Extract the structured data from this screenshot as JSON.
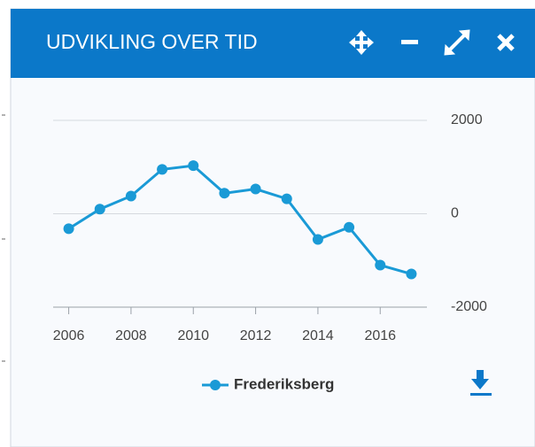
{
  "header": {
    "title": "UDVIKLING OVER TID"
  },
  "chart_data": {
    "type": "line",
    "x": [
      2006,
      2007,
      2008,
      2009,
      2010,
      2011,
      2012,
      2013,
      2014,
      2015,
      2016,
      2017
    ],
    "series": [
      {
        "name": "Frederiksberg",
        "color": "#1a9ad6",
        "values": [
          -320,
          100,
          380,
          950,
          1030,
          440,
          530,
          320,
          -550,
          -290,
          -1100,
          -1290
        ]
      }
    ],
    "xlim": [
      2005.5,
      2017.5
    ],
    "xticks": [
      2006,
      2008,
      2010,
      2012,
      2014,
      2016
    ],
    "ylim": [
      -2000,
      2000
    ],
    "yticks": [
      -2000,
      0,
      2000
    ],
    "grid": true
  }
}
